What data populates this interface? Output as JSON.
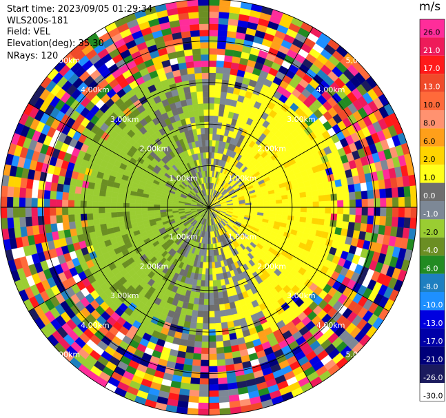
{
  "info": {
    "start_time": "Start time: 2023/09/05 01:29:34",
    "instrument": "WLS200s-181",
    "field": "Field: VEL",
    "elevation": "Elevation(deg): 35.30",
    "nrays": "NRays: 120"
  },
  "colorbar": {
    "unit": "m/s",
    "bins": [
      {
        "label": "26.0",
        "color": "#ff2d9a"
      },
      {
        "label": "21.0",
        "color": "#ee1b5a"
      },
      {
        "label": "17.0",
        "color": "#ff1a1a"
      },
      {
        "label": "13.0",
        "color": "#f04a2a"
      },
      {
        "label": "10.0",
        "color": "#ff6a3a"
      },
      {
        "label": "8.0",
        "color": "#ff9270"
      },
      {
        "label": "6.0",
        "color": "#ff9f1a"
      },
      {
        "label": "2.0",
        "color": "#ffd400"
      },
      {
        "label": "1.0",
        "color": "#ffff1a"
      },
      {
        "label": "0.0",
        "color": "#6e6e6e"
      },
      {
        "label": "-1.0",
        "color": "#7d8896"
      },
      {
        "label": "-2.0",
        "color": "#9acd32"
      },
      {
        "label": "-4.0",
        "color": "#6b8e23"
      },
      {
        "label": "-6.0",
        "color": "#228b22"
      },
      {
        "label": "-8.0",
        "color": "#1e7fc0"
      },
      {
        "label": "-10.0",
        "color": "#1e90ff"
      },
      {
        "label": "-13.0",
        "color": "#0000e0"
      },
      {
        "label": "-17.0",
        "color": "#0000a8"
      },
      {
        "label": "-21.0",
        "color": "#00007a"
      },
      {
        "label": "-26.0",
        "color": "#1b1b5e"
      },
      {
        "label": "-30.0",
        "color": "#ffffff"
      }
    ]
  },
  "range_rings": [
    {
      "label": "1.00km",
      "range_km": 1.0
    },
    {
      "label": "2.00km",
      "range_km": 2.0
    },
    {
      "label": "3.00km",
      "range_km": 3.0
    },
    {
      "label": "4.00km",
      "range_km": 4.0
    },
    {
      "label": "5.00km",
      "range_km": 5.0
    }
  ],
  "scan": {
    "nrays": 120,
    "max_range_km": 5.0,
    "n_gates": 34,
    "spoke_angles_deg": [
      0,
      30,
      60,
      90,
      120,
      150,
      180,
      210,
      240,
      270,
      300,
      330
    ]
  }
}
